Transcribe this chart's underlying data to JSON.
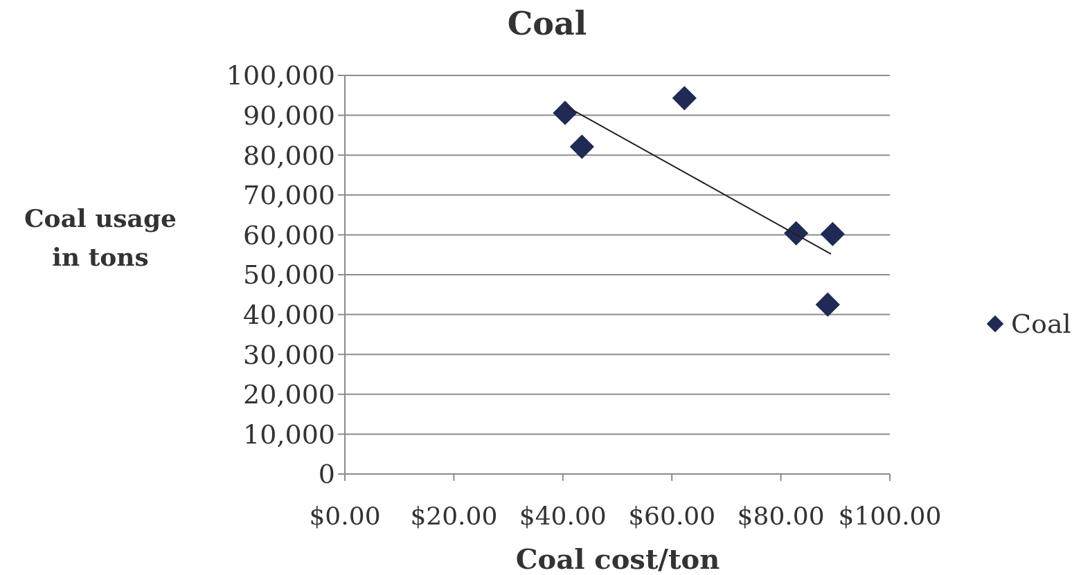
{
  "chart_data": {
    "type": "scatter",
    "title": "Coal",
    "xlabel": "Coal cost/ton",
    "ylabel": "Coal usage in tons",
    "xlim": [
      0,
      100
    ],
    "xticks": [
      {
        "value": 0,
        "label": "$0.00"
      },
      {
        "value": 20,
        "label": "$20.00"
      },
      {
        "value": 40,
        "label": "$40.00"
      },
      {
        "value": 60,
        "label": "$60.00"
      },
      {
        "value": 80,
        "label": "$80.00"
      },
      {
        "value": 100,
        "label": "$100.00"
      }
    ],
    "ylim": [
      0,
      100000
    ],
    "yticks": [
      {
        "value": 0,
        "label": "0"
      },
      {
        "value": 10000,
        "label": "10,000"
      },
      {
        "value": 20000,
        "label": "20,000"
      },
      {
        "value": 30000,
        "label": "30,000"
      },
      {
        "value": 40000,
        "label": "40,000"
      },
      {
        "value": 50000,
        "label": "50,000"
      },
      {
        "value": 60000,
        "label": "60,000"
      },
      {
        "value": 70000,
        "label": "70,000"
      },
      {
        "value": 80000,
        "label": "80,000"
      },
      {
        "value": 90000,
        "label": "90,000"
      },
      {
        "value": 100000,
        "label": "100,000"
      }
    ],
    "grid": "y",
    "legend": "right",
    "marker": "diamond",
    "series": [
      {
        "name": "Coal",
        "color": "#1f2a56",
        "x": [
          40.4,
          43.5,
          62.3,
          82.8,
          89.5,
          88.6
        ],
        "values": [
          90600,
          82100,
          94300,
          60400,
          60200,
          42500
        ]
      },
      {
        "type": "line",
        "marker": "none",
        "color": "#222222",
        "x": [
          40.4,
          89.2
        ],
        "values": [
          92400,
          55200
        ]
      }
    ]
  }
}
